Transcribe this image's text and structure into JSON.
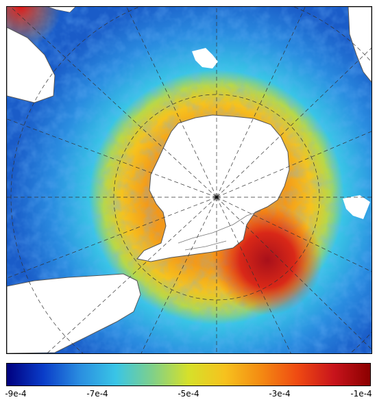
{
  "map": {
    "projection": "south-polar-stereographic",
    "field_range": [
      -0.0009,
      -0.0001
    ],
    "colors": {
      "land": "#ffffff",
      "coastline": "#555555",
      "graticule": "#333333"
    }
  },
  "colorbar": {
    "stops": [
      "#00007f",
      "#0a3cc8",
      "#2a8de0",
      "#39c5e6",
      "#7fd08a",
      "#d6e02a",
      "#f6c21e",
      "#f48a12",
      "#ef4a12",
      "#c8141c",
      "#8b0000"
    ],
    "tick_labels": [
      "-9e-4",
      "-7e-4",
      "-5e-4",
      "-3e-4",
      "-1e-4"
    ]
  }
}
